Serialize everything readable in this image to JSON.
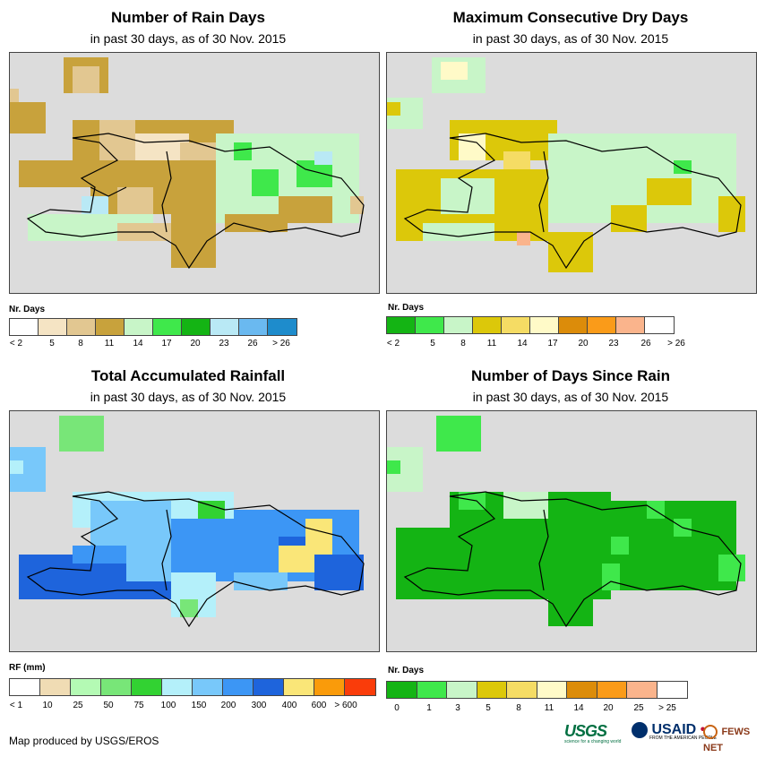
{
  "credit": "Map produced by USGS/EROS",
  "logos": {
    "usgs": "USGS",
    "usgs_tagline": "science for a changing world",
    "usaid": "USAID",
    "usaid_tagline": "FROM THE AMERICAN PEOPLE",
    "fews": "FEWS NET"
  },
  "panels": [
    {
      "id": "rain-days",
      "title": "Number of Rain Days",
      "subtitle": "in past 30 days, as of 30 Nov. 2015",
      "legend_title": "Nr. Days",
      "colors": [
        "#ffffff",
        "#f5e4c4",
        "#e2c791",
        "#c8a23c",
        "#c8f5c8",
        "#3fe84b",
        "#14b414",
        "#b9e9f5",
        "#6ab9f0",
        "#1e8ccc"
      ],
      "ticks": [
        "< 2",
        "5",
        "8",
        "11",
        "14",
        "17",
        "20",
        "23",
        "26",
        "> 26"
      ]
    },
    {
      "id": "max-dry-days",
      "title": "Maximum Consecutive Dry Days",
      "subtitle": "in past 30 days, as of 30 Nov. 2015",
      "legend_title": "Nr. Days",
      "colors": [
        "#14b414",
        "#3fe84b",
        "#c8f5c8",
        "#dcc80a",
        "#f5dc64",
        "#fffac8",
        "#dc8c0a",
        "#fa9b19",
        "#fab48c",
        "#ffffff"
      ],
      "ticks": [
        "< 2",
        "5",
        "8",
        "11",
        "14",
        "17",
        "20",
        "23",
        "26",
        "> 26"
      ]
    },
    {
      "id": "total-rainfall",
      "title": "Total Accumulated Rainfall",
      "subtitle": "in past 30 days, as of 30 Nov. 2015",
      "legend_title": "RF (mm)",
      "colors": [
        "#ffffff",
        "#f0dcb4",
        "#b4fab4",
        "#78e678",
        "#32d232",
        "#b4f0fa",
        "#78c8fa",
        "#3c96f5",
        "#1e64dc",
        "#fae678",
        "#fa9b0a",
        "#fa3c0a"
      ],
      "ticks": [
        "< 1",
        "10",
        "25",
        "50",
        "75",
        "100",
        "150",
        "200",
        "300",
        "400",
        "600",
        "> 600"
      ]
    },
    {
      "id": "days-since-rain",
      "title": "Number of Days Since Rain",
      "subtitle": "in past 30 days, as of 30 Nov. 2015",
      "legend_title": "Nr. Days",
      "colors": [
        "#14b414",
        "#3fe84b",
        "#c8f5c8",
        "#dcc80a",
        "#f5dc64",
        "#fffac8",
        "#dc8c0a",
        "#fa9b19",
        "#fab48c",
        "#ffffff"
      ],
      "ticks": [
        "0",
        "1",
        "3",
        "5",
        "8",
        "11",
        "14",
        "20",
        "25",
        "> 25"
      ]
    }
  ]
}
